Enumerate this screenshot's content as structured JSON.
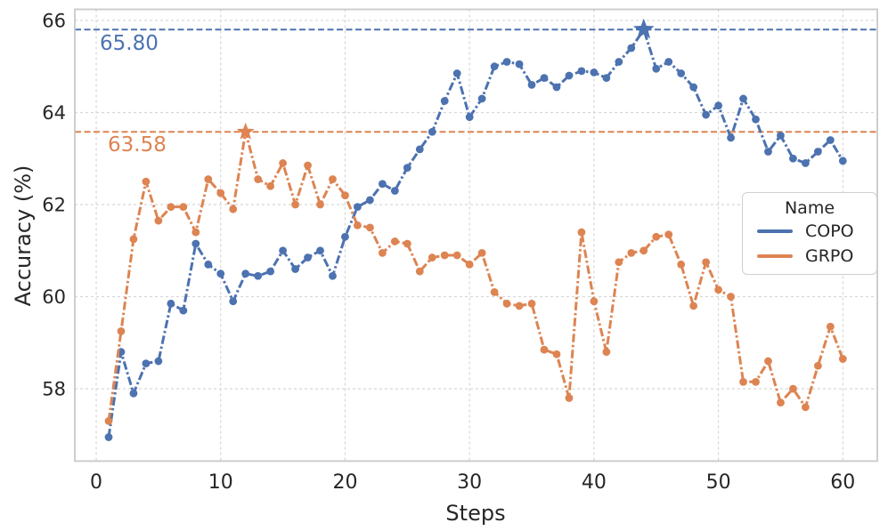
{
  "chart_data": {
    "type": "line",
    "xlabel": "Steps",
    "ylabel": "Accuracy (%)",
    "xlim": [
      -1.72,
      62.77
    ],
    "ylim": [
      56.43,
      66.24
    ],
    "xticks": [
      0,
      10,
      20,
      30,
      40,
      50,
      60
    ],
    "yticks": [
      58,
      60,
      62,
      64,
      66
    ],
    "grid": true,
    "legend": {
      "title": "Name",
      "position": "lower-right",
      "entries": [
        "COPO",
        "GRPO"
      ]
    },
    "x": [
      1,
      2,
      3,
      4,
      5,
      6,
      7,
      8,
      9,
      10,
      11,
      12,
      13,
      14,
      15,
      16,
      17,
      18,
      19,
      20,
      21,
      22,
      23,
      24,
      25,
      26,
      27,
      28,
      29,
      30,
      31,
      32,
      33,
      34,
      35,
      36,
      37,
      38,
      39,
      40,
      41,
      42,
      43,
      44,
      45,
      46,
      47,
      48,
      49,
      50,
      51,
      52,
      53,
      54,
      55,
      56,
      57,
      58,
      59,
      60
    ],
    "series": [
      {
        "name": "COPO",
        "color": "#4C72B0",
        "values": [
          56.95,
          58.8,
          57.9,
          58.55,
          58.6,
          59.85,
          59.7,
          61.15,
          60.7,
          60.5,
          59.9,
          60.5,
          60.45,
          60.55,
          61.0,
          60.6,
          60.85,
          61.0,
          60.45,
          61.3,
          61.95,
          62.1,
          62.45,
          62.3,
          62.8,
          63.2,
          63.58,
          64.25,
          64.85,
          63.9,
          64.3,
          65.0,
          65.1,
          65.05,
          64.6,
          64.75,
          64.55,
          64.8,
          64.9,
          64.87,
          64.75,
          65.1,
          65.4,
          65.8,
          64.95,
          65.1,
          64.85,
          64.55,
          63.95,
          64.15,
          63.45,
          64.3,
          63.85,
          63.15,
          63.5,
          63.0,
          62.9,
          63.15,
          63.4,
          62.95
        ],
        "best": {
          "step": 44,
          "value": 65.8,
          "label": "65.80"
        }
      },
      {
        "name": "GRPO",
        "color": "#DD8452",
        "values": [
          57.3,
          59.25,
          61.25,
          62.5,
          61.65,
          61.95,
          61.95,
          61.4,
          62.55,
          62.25,
          61.9,
          63.58,
          62.55,
          62.4,
          62.9,
          62.0,
          62.85,
          62.0,
          62.55,
          62.2,
          61.55,
          61.5,
          60.95,
          61.2,
          61.15,
          60.55,
          60.85,
          60.9,
          60.9,
          60.7,
          60.95,
          60.1,
          59.85,
          59.8,
          59.85,
          58.85,
          58.75,
          57.8,
          61.4,
          59.9,
          58.8,
          60.75,
          60.95,
          61.0,
          61.3,
          61.35,
          60.7,
          59.8,
          60.75,
          60.15,
          60.0,
          58.15,
          58.15,
          58.6,
          57.7,
          58.0,
          57.6,
          58.5,
          59.35,
          58.65
        ],
        "best": {
          "step": 12,
          "value": 63.58,
          "label": "63.58"
        }
      }
    ]
  }
}
